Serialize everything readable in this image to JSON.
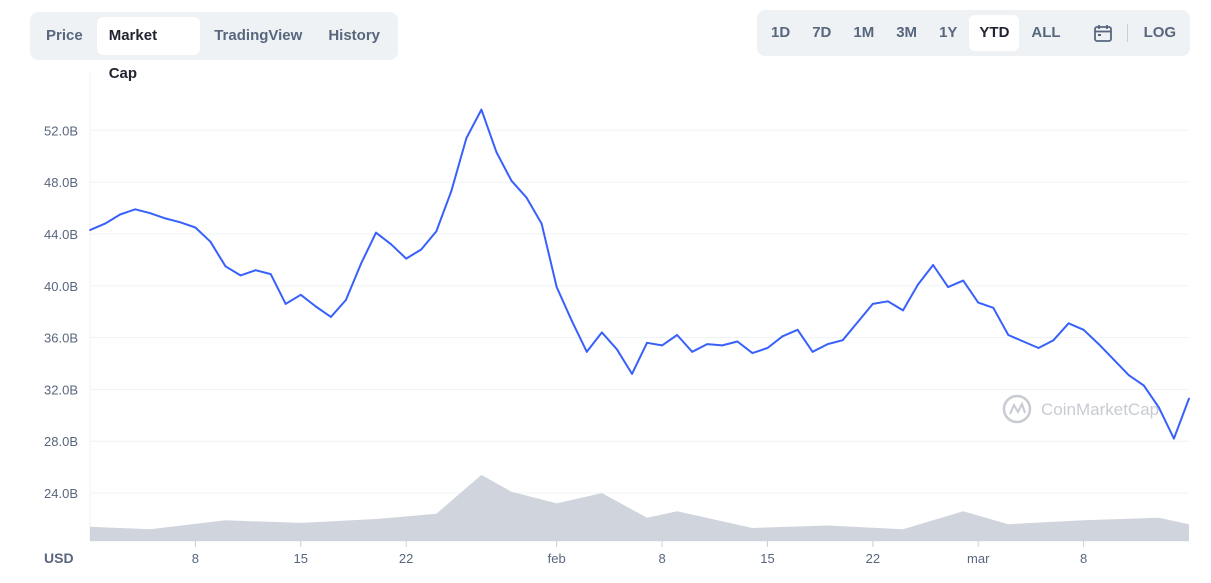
{
  "tabs": [
    {
      "label": "Price",
      "active": false
    },
    {
      "label": "Market Cap",
      "active": true
    },
    {
      "label": "TradingView",
      "active": false
    },
    {
      "label": "History",
      "active": false
    }
  ],
  "ranges": [
    {
      "label": "1D",
      "active": false
    },
    {
      "label": "7D",
      "active": false
    },
    {
      "label": "1M",
      "active": false
    },
    {
      "label": "3M",
      "active": false
    },
    {
      "label": "1Y",
      "active": false
    },
    {
      "label": "YTD",
      "active": true
    },
    {
      "label": "ALL",
      "active": false
    }
  ],
  "calendar_icon": "calendar-icon",
  "log_label": "LOG",
  "watermark": "CoinMarketCap",
  "currency_label": "USD",
  "colors": {
    "line": "#3861fb",
    "volume": "#c8ccd6",
    "grid": "#eff2f5"
  },
  "chart_data": {
    "type": "line",
    "title": "",
    "xlabel": "",
    "ylabel": "",
    "x_ticks": [
      "8",
      "15",
      "22",
      "feb",
      "8",
      "15",
      "22",
      "mar",
      "8"
    ],
    "y_ticks": [
      "24.0B",
      "28.0B",
      "32.0B",
      "36.0B",
      "40.0B",
      "44.0B",
      "48.0B",
      "52.0B"
    ],
    "ylim": [
      20.3,
      56.5
    ],
    "grid": true,
    "x_unit": "day",
    "x_range": [
      1,
      74
    ],
    "series": [
      {
        "points": [
          [
            1,
            44.3
          ],
          [
            2,
            44.8
          ],
          [
            3,
            45.5
          ],
          [
            4,
            45.9
          ],
          [
            5,
            45.6
          ],
          [
            6,
            45.2
          ],
          [
            7,
            44.9
          ],
          [
            8,
            44.5
          ],
          [
            9,
            43.4
          ],
          [
            10,
            41.5
          ],
          [
            11,
            40.8
          ],
          [
            12,
            41.2
          ],
          [
            13,
            40.9
          ],
          [
            14,
            38.6
          ],
          [
            15,
            39.3
          ],
          [
            16,
            38.4
          ],
          [
            17,
            37.6
          ],
          [
            18,
            38.9
          ],
          [
            19,
            41.7
          ],
          [
            20,
            44.1
          ],
          [
            21,
            43.2
          ],
          [
            22,
            42.1
          ],
          [
            23,
            42.8
          ],
          [
            24,
            44.2
          ],
          [
            25,
            47.3
          ],
          [
            26,
            51.4
          ],
          [
            27,
            53.6
          ],
          [
            28,
            50.3
          ],
          [
            29,
            48.1
          ],
          [
            30,
            46.8
          ],
          [
            31,
            44.8
          ],
          [
            32,
            39.9
          ],
          [
            33,
            37.3
          ],
          [
            34,
            34.9
          ],
          [
            35,
            36.4
          ],
          [
            36,
            35.1
          ],
          [
            37,
            33.2
          ],
          [
            38,
            35.6
          ],
          [
            39,
            35.4
          ],
          [
            40,
            36.2
          ],
          [
            41,
            34.9
          ],
          [
            42,
            35.5
          ],
          [
            43,
            35.4
          ],
          [
            44,
            35.7
          ],
          [
            45,
            34.8
          ],
          [
            46,
            35.2
          ],
          [
            47,
            36.1
          ],
          [
            48,
            36.6
          ],
          [
            49,
            34.9
          ],
          [
            50,
            35.5
          ],
          [
            51,
            35.8
          ],
          [
            52,
            37.2
          ],
          [
            53,
            38.6
          ],
          [
            54,
            38.8
          ],
          [
            55,
            38.1
          ],
          [
            56,
            40.1
          ],
          [
            57,
            41.6
          ],
          [
            58,
            39.9
          ],
          [
            59,
            40.4
          ],
          [
            60,
            38.7
          ],
          [
            61,
            38.3
          ],
          [
            62,
            36.2
          ],
          [
            63,
            35.7
          ],
          [
            64,
            35.2
          ],
          [
            65,
            35.8
          ],
          [
            66,
            37.1
          ],
          [
            67,
            36.6
          ],
          [
            68,
            35.5
          ],
          [
            69,
            34.3
          ],
          [
            70,
            33.1
          ],
          [
            71,
            32.3
          ],
          [
            72,
            30.6
          ],
          [
            73,
            28.2
          ],
          [
            74,
            31.3
          ]
        ]
      }
    ],
    "volume_series": [
      [
        1,
        21.4
      ],
      [
        5,
        21.2
      ],
      [
        10,
        21.9
      ],
      [
        15,
        21.7
      ],
      [
        20,
        22.0
      ],
      [
        24,
        22.4
      ],
      [
        27,
        25.4
      ],
      [
        29,
        24.1
      ],
      [
        32,
        23.2
      ],
      [
        35,
        24.0
      ],
      [
        38,
        22.1
      ],
      [
        40,
        22.6
      ],
      [
        45,
        21.3
      ],
      [
        50,
        21.5
      ],
      [
        55,
        21.2
      ],
      [
        59,
        22.6
      ],
      [
        62,
        21.6
      ],
      [
        67,
        21.9
      ],
      [
        72,
        22.1
      ],
      [
        74,
        21.6
      ]
    ]
  }
}
